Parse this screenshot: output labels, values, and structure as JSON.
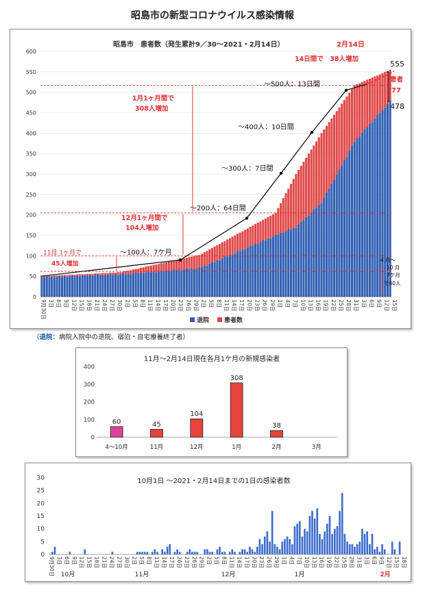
{
  "page_title": "昭島市の新型コロナウイルス感染情報",
  "note": {
    "key": "退院",
    "text": "：病院入院中の退院、宿泊・自宅療養終了者）",
    "open": "（"
  },
  "chart1": {
    "title_a": "昭島市　患者数（発生累計9／30～2021・2月14日）",
    "title_b": "2月14日",
    "legend": [
      "退院",
      "患者数"
    ],
    "annotations": {
      "d14": "14日間で　38人増加",
      "nov": "11月 1ヶ月で",
      "nov2": "45人増加",
      "m100": "～100人：7ケ月",
      "dec": "12月1ヶ月間で",
      "dec2": "104人増加",
      "m200": "～200人：64日間",
      "jan": "1月1ヶ月間で",
      "jan2": "308人増加",
      "m300": "～300人：7日間",
      "m400": "～400人：10日間",
      "m500": "～500人：13日間",
      "total": "555",
      "patients": "患者",
      "patients_n": "77",
      "discharged_n": "478",
      "side1": "4 月～",
      "side2": "10 月",
      "side3": "7ケ月",
      "side4": "で60人"
    },
    "y_ticks": [
      "0",
      "50",
      "100",
      "150",
      "200",
      "250",
      "300",
      "350",
      "400",
      "450",
      "500",
      "550",
      "600"
    ],
    "x_labels": [
      "9月30日",
      "3日",
      "6日",
      "9日",
      "12日",
      "15日",
      "18日",
      "21日",
      "24日",
      "27日",
      "30日",
      "2日",
      "5日",
      "8日",
      "11日",
      "14日",
      "17日",
      "20日",
      "23日",
      "26日",
      "29日",
      "2日",
      "5日",
      "8日",
      "11日",
      "14日",
      "17日",
      "20日",
      "23日",
      "26日",
      "29日",
      "1日",
      "4日",
      "7日",
      "10日",
      "13日",
      "16日",
      "19日",
      "22日",
      "25日",
      "28日",
      "31日",
      "3日",
      "6日",
      "9日",
      "12日",
      "15日"
    ]
  },
  "chart_data": [
    {
      "type": "bar",
      "title": "昭島市　患者数（発生累計9／30～2021・2月14日）",
      "stacked": true,
      "ylim": [
        0,
        600
      ],
      "series_names": [
        "退院",
        "患者数"
      ],
      "approx_points": [
        {
          "day": 0,
          "total": 50,
          "discharged": 48
        },
        {
          "day": 31,
          "total": 60,
          "discharged": 55
        },
        {
          "day": 62,
          "total": 102,
          "discharged": 70
        },
        {
          "day": 92,
          "total": 205,
          "discharged": 150
        },
        {
          "day": 100,
          "total": 300,
          "discharged": 170
        },
        {
          "day": 110,
          "total": 400,
          "discharged": 230
        },
        {
          "day": 123,
          "total": 517,
          "discharged": 380
        },
        {
          "day": 137,
          "total": 555,
          "discharged": 478
        }
      ]
    },
    {
      "type": "bar",
      "title": "11月～2月14日現在各月1ケ月の新規感染者",
      "categories": [
        "4～10月",
        "11月",
        "12月",
        "1月",
        "2月",
        "3月"
      ],
      "values": [
        60,
        45,
        104,
        308,
        38,
        null
      ],
      "value_labels": [
        "60",
        "45",
        "104",
        "308",
        "38",
        ""
      ],
      "colors": [
        "#e0409a",
        "#e8423c",
        "#e8423c",
        "#e8423c",
        "#e8423c",
        ""
      ],
      "ylim": [
        0,
        400
      ],
      "y_ticks": [
        "0",
        "100",
        "200",
        "300",
        "400"
      ]
    },
    {
      "type": "bar",
      "title": "10月1日 ～2021・2月14日までの1日の感染者数",
      "ylim": [
        0,
        30
      ],
      "y_ticks": [
        "0",
        "5",
        "10",
        "15",
        "20",
        "25",
        "30"
      ],
      "values": [
        0,
        1,
        3,
        0,
        0,
        0,
        0,
        0,
        1,
        0,
        0,
        0,
        0,
        0,
        2,
        0,
        0,
        0,
        0,
        0,
        0,
        0,
        0,
        0,
        0,
        1,
        0,
        0,
        0,
        0,
        0,
        0,
        0,
        0,
        0,
        1,
        1,
        1,
        1,
        1,
        0,
        1,
        2,
        1,
        0,
        2,
        1,
        3,
        4,
        0,
        1,
        2,
        1,
        0,
        0,
        1,
        2,
        1,
        1,
        1,
        0,
        0,
        2,
        2,
        1,
        1,
        0,
        2,
        3,
        1,
        1,
        0,
        1,
        2,
        1,
        0,
        1,
        2,
        2,
        1,
        3,
        2,
        1,
        3,
        6,
        4,
        7,
        9,
        5,
        17,
        4,
        3,
        2,
        5,
        6,
        7,
        6,
        4,
        11,
        12,
        13,
        7,
        10,
        9,
        15,
        17,
        14,
        18,
        8,
        6,
        9,
        12,
        15,
        8,
        10,
        11,
        17,
        24,
        8,
        5,
        4,
        4,
        3,
        4,
        5,
        10,
        8,
        9,
        4,
        8,
        2,
        3,
        1,
        4,
        2,
        0,
        0,
        5,
        2,
        0,
        5
      ],
      "x_labels": [
        "9月30日",
        "3日",
        "6日",
        "9日",
        "12日",
        "15日",
        "18日",
        "21日",
        "24日",
        "27日",
        "30日",
        "2日",
        "5日",
        "8日",
        "11日",
        "14日",
        "17日",
        "20日",
        "23日",
        "26日",
        "29日",
        "2日",
        "5日",
        "8日",
        "11日",
        "14日",
        "17日",
        "20日",
        "23日",
        "26日",
        "29日",
        "1日",
        "4日",
        "7日",
        "10日",
        "13日",
        "16日",
        "19日",
        "22日",
        "25日",
        "28日",
        "31日",
        "3日",
        "6日",
        "9日",
        "12日",
        "15日",
        "18日"
      ],
      "month_labels": [
        "10月",
        "11月",
        "12月",
        "1月",
        "2月"
      ]
    }
  ]
}
